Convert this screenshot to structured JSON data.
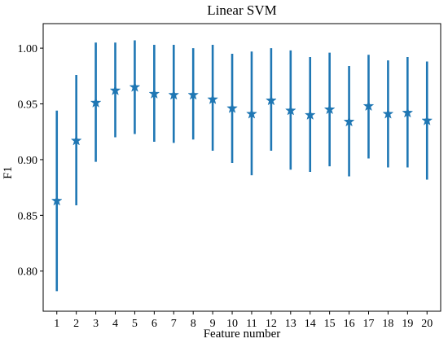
{
  "chart_data": {
    "type": "scatter",
    "title": "Linear SVM",
    "xlabel": "Feature number",
    "ylabel": "F1",
    "xlim": [
      0.3,
      20.7
    ],
    "ylim": [
      0.764,
      1.022
    ],
    "yticks": [
      0.8,
      0.85,
      0.9,
      0.95,
      1.0
    ],
    "ytick_labels": [
      "0.80",
      "0.85",
      "0.90",
      "0.95",
      "1.00"
    ],
    "x": [
      1,
      2,
      3,
      4,
      5,
      6,
      7,
      8,
      9,
      10,
      11,
      12,
      13,
      14,
      15,
      16,
      17,
      18,
      19,
      20
    ],
    "xtick_labels": [
      "1",
      "2",
      "3",
      "4",
      "5",
      "6",
      "7",
      "8",
      "9",
      "10",
      "11",
      "12",
      "13",
      "14",
      "15",
      "16",
      "17",
      "18",
      "19",
      "20"
    ],
    "series": [
      {
        "marker": "star",
        "color": "#1f77b4",
        "values": [
          0.863,
          0.917,
          0.951,
          0.962,
          0.965,
          0.959,
          0.958,
          0.958,
          0.954,
          0.946,
          0.941,
          0.953,
          0.944,
          0.94,
          0.945,
          0.934,
          0.948,
          0.941,
          0.942,
          0.935
        ],
        "error_low": [
          0.782,
          0.859,
          0.898,
          0.92,
          0.923,
          0.916,
          0.915,
          0.918,
          0.908,
          0.897,
          0.886,
          0.908,
          0.891,
          0.889,
          0.894,
          0.885,
          0.901,
          0.893,
          0.893,
          0.882
        ],
        "error_high": [
          0.944,
          0.976,
          1.005,
          1.005,
          1.007,
          1.003,
          1.003,
          1.0,
          1.003,
          0.995,
          0.997,
          1.0,
          0.998,
          0.992,
          0.996,
          0.984,
          0.994,
          0.989,
          0.992,
          0.988
        ]
      }
    ],
    "grid": false,
    "legend": "none"
  }
}
